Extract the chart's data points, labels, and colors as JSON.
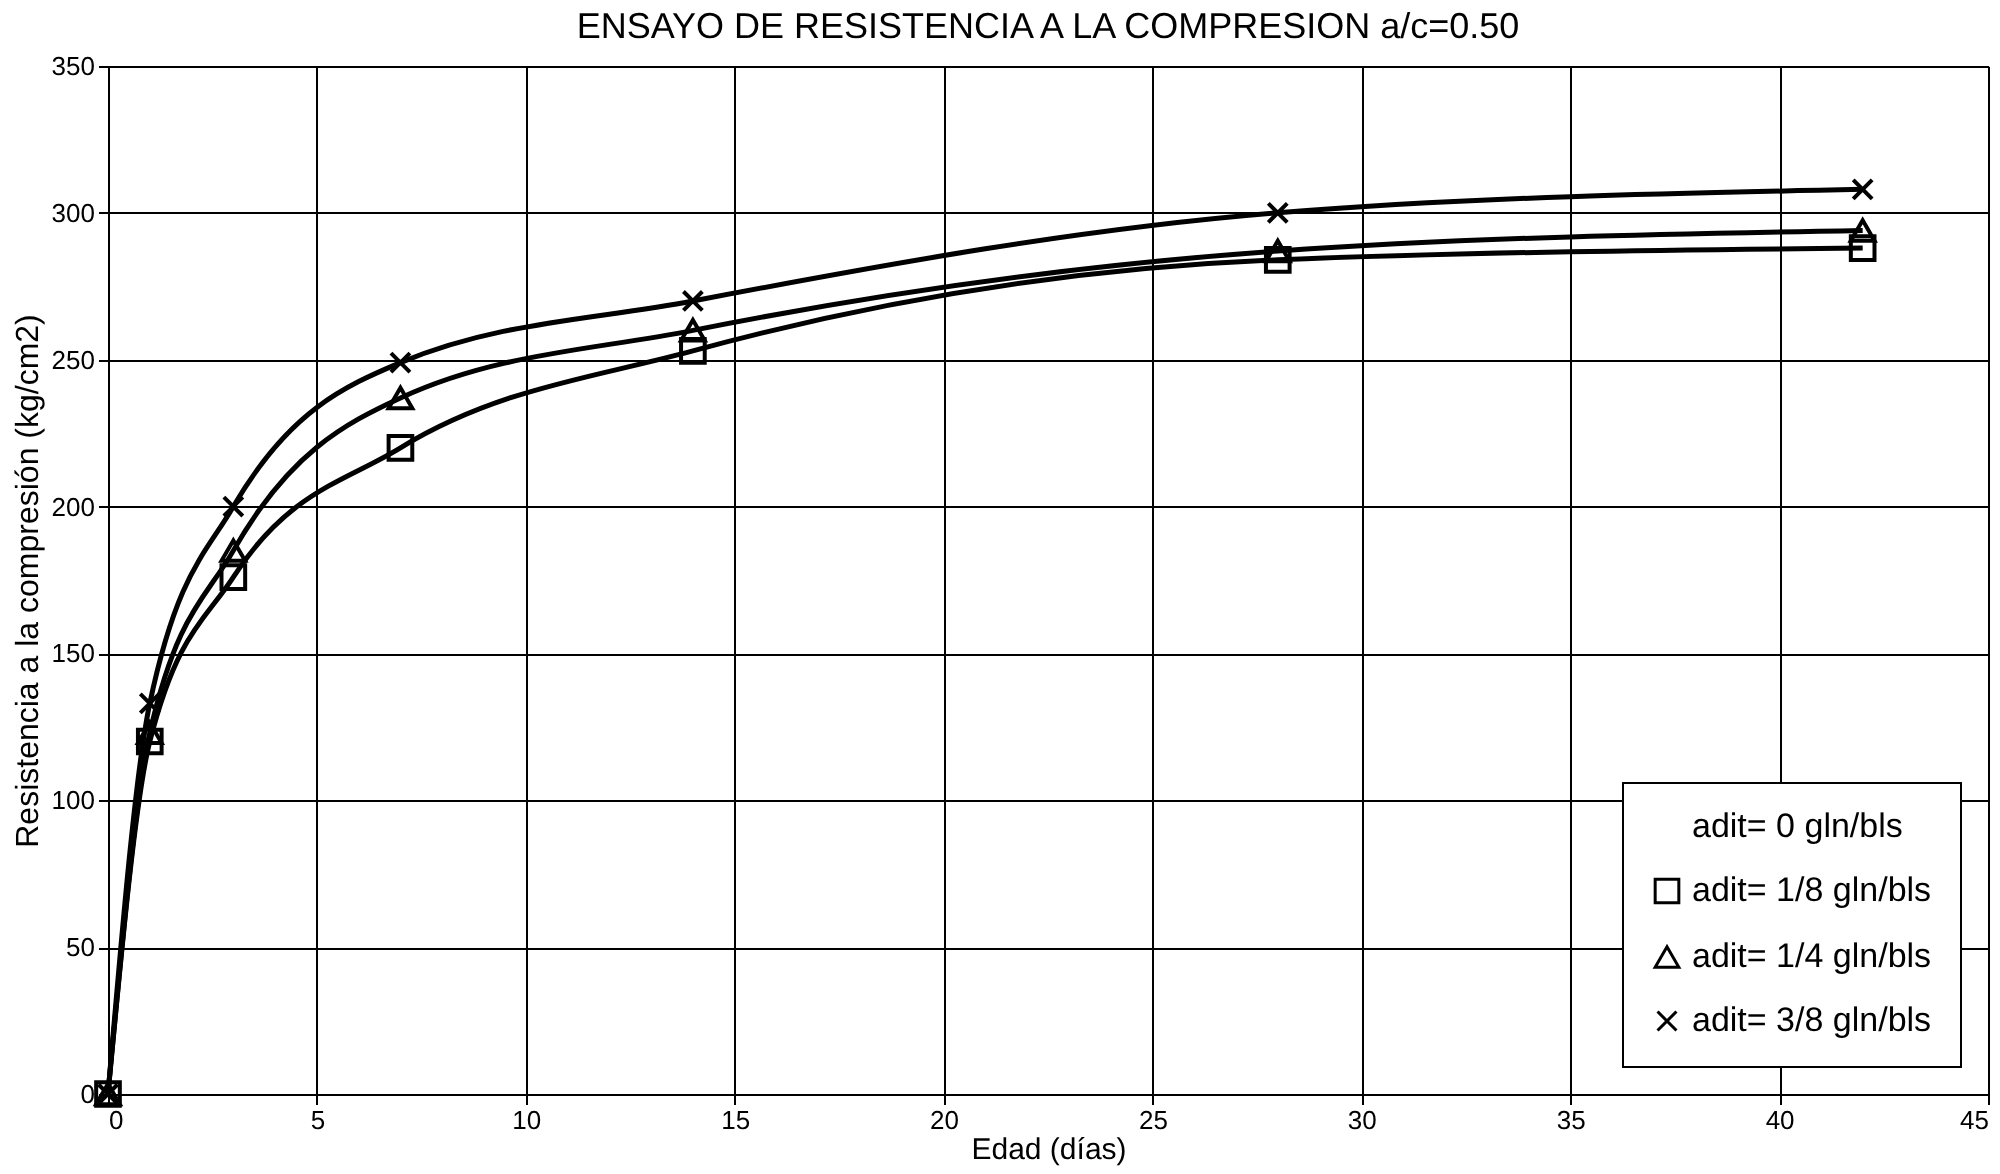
{
  "chart_data": {
    "type": "line",
    "title": "ENSAYO DE RESISTENCIA A LA COMPRESION a/c=0.50",
    "xlabel": "Edad (días)",
    "ylabel": "Resistencia a la compresión (kg/cm2)",
    "x": [
      0,
      1,
      3,
      7,
      14,
      28,
      42
    ],
    "series": [
      {
        "name": "adit= 0 gln/bls",
        "marker": "none",
        "values": [
          null,
          null,
          null,
          null,
          null,
          null,
          null
        ]
      },
      {
        "name": "adit= 1/8 gln/bls",
        "color": "#000000",
        "marker": "square",
        "values": [
          0,
          120,
          176,
          220,
          253,
          284,
          288
        ]
      },
      {
        "name": "adit= 1/4 gln/bls",
        "color": "#000000",
        "marker": "triangle",
        "values": [
          0,
          123,
          185,
          237,
          260,
          287,
          294
        ]
      },
      {
        "name": "adit= 3/8 gln/bls",
        "color": "#000000",
        "marker": "cross",
        "values": [
          0,
          133,
          200,
          249,
          270,
          300,
          308
        ]
      }
    ],
    "xlim": [
      0,
      45
    ],
    "xticks": [
      0,
      5,
      10,
      15,
      20,
      25,
      30,
      35,
      40,
      45
    ],
    "ylim": [
      0,
      350
    ],
    "yticks": [
      0,
      50,
      100,
      150,
      200,
      250,
      300,
      350
    ],
    "grid": true,
    "legend": "bottom right"
  }
}
